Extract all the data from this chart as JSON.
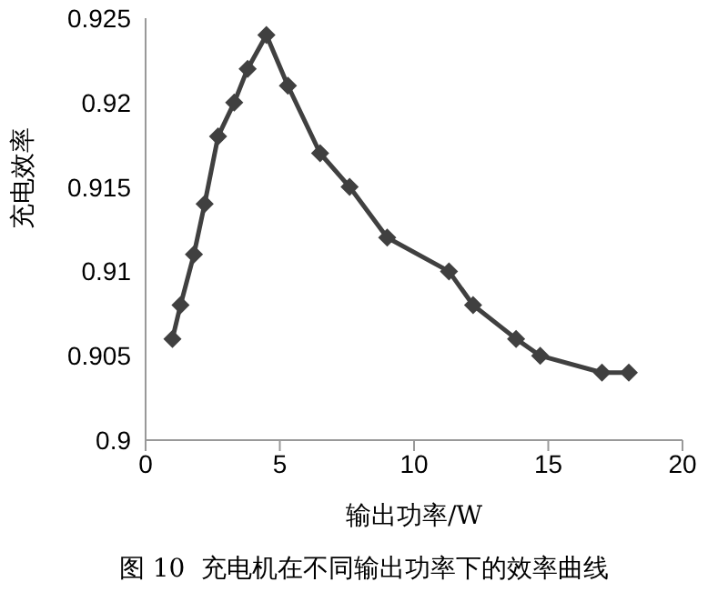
{
  "chart_data": {
    "type": "line",
    "xlabel": "输出功率/W",
    "ylabel": "充电效率",
    "annotations": [
      "图 10  充电机在不同输出功率下的效率曲线"
    ],
    "x": [
      1.0,
      1.3,
      1.8,
      2.2,
      2.7,
      3.3,
      3.8,
      4.5,
      5.3,
      6.5,
      7.6,
      9.0,
      11.3,
      12.2,
      13.8,
      14.7,
      17.0,
      18.0
    ],
    "series": [
      {
        "color": "#404040",
        "values": [
          0.906,
          0.908,
          0.911,
          0.914,
          0.918,
          0.92,
          0.922,
          0.924,
          0.921,
          0.917,
          0.915,
          0.912,
          0.91,
          0.908,
          0.906,
          0.905,
          0.904,
          0.904
        ]
      }
    ],
    "xlim": [
      0,
      20
    ],
    "xticks": [
      0,
      5,
      10,
      15,
      20
    ],
    "ylim": [
      0.9,
      0.925
    ],
    "yticks": [
      0.9,
      0.905,
      0.91,
      0.915,
      0.92,
      0.925
    ],
    "marker": "diamond",
    "line_style": "solid",
    "grid": false,
    "legend": false
  }
}
